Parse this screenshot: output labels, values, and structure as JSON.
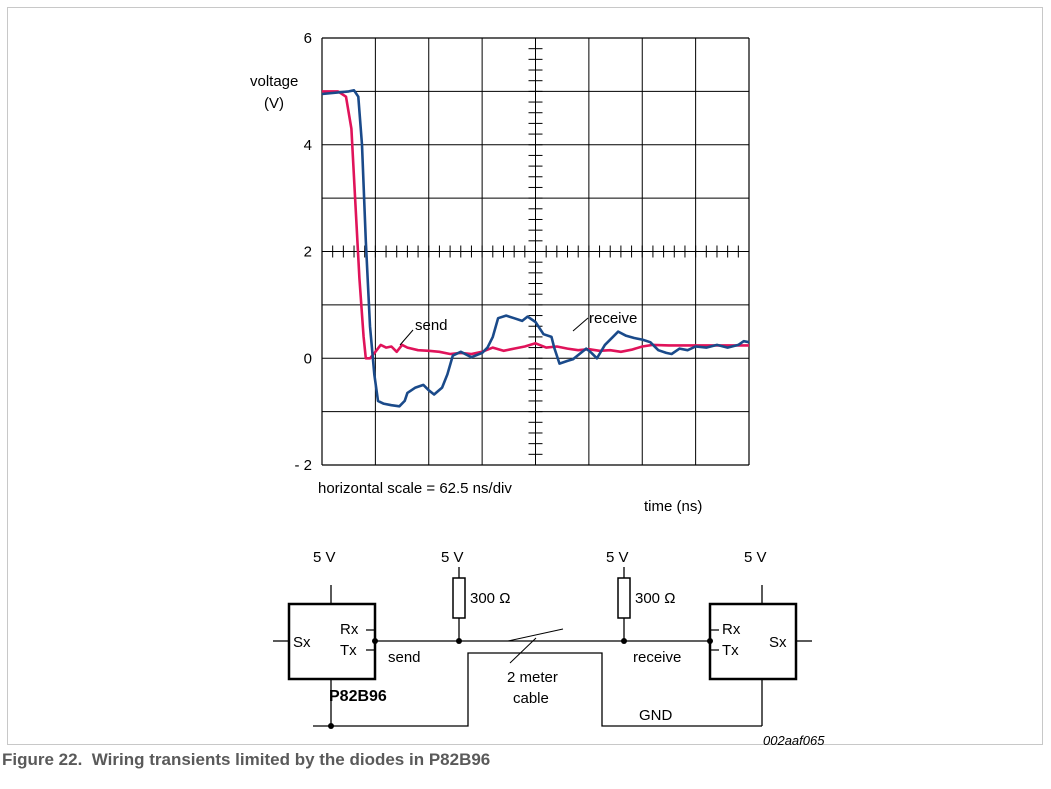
{
  "caption": {
    "number": "Figure 22.",
    "text": "Wiring transients limited by the diodes in P82B96"
  },
  "chart_data": {
    "type": "line",
    "ylabel_line1": "voltage",
    "ylabel_line2": "(V)",
    "xlabel": "time (ns)",
    "scale_note": "horizontal scale = 62.5 ns/div",
    "x_unit": "div",
    "xlim": [
      0,
      8
    ],
    "ylim": [
      -2,
      6
    ],
    "yticks": [
      {
        "v": 6,
        "label": "6"
      },
      {
        "v": 4,
        "label": "4"
      },
      {
        "v": 2,
        "label": "2"
      },
      {
        "v": 0,
        "label": "0"
      },
      {
        "v": -2,
        "label": "- 2"
      }
    ],
    "grid": true,
    "series": [
      {
        "name": "send",
        "color": "#e0135a",
        "points": [
          [
            0,
            5
          ],
          [
            0.3,
            5
          ],
          [
            0.45,
            4.9
          ],
          [
            0.55,
            4.3
          ],
          [
            0.62,
            3
          ],
          [
            0.7,
            1.5
          ],
          [
            0.78,
            0.4
          ],
          [
            0.82,
            0
          ],
          [
            0.9,
            0
          ],
          [
            1.0,
            0.12
          ],
          [
            1.1,
            0.25
          ],
          [
            1.2,
            0.2
          ],
          [
            1.3,
            0.22
          ],
          [
            1.4,
            0.12
          ],
          [
            1.5,
            0.25
          ],
          [
            1.6,
            0.2
          ],
          [
            1.8,
            0.15
          ],
          [
            2.0,
            0.14
          ],
          [
            2.2,
            0.12
          ],
          [
            2.4,
            0.08
          ],
          [
            2.6,
            0.1
          ],
          [
            2.8,
            0.08
          ],
          [
            3.0,
            0.12
          ],
          [
            3.2,
            0.2
          ],
          [
            3.4,
            0.14
          ],
          [
            3.6,
            0.18
          ],
          [
            3.8,
            0.22
          ],
          [
            4.0,
            0.28
          ],
          [
            4.2,
            0.2
          ],
          [
            4.4,
            0.22
          ],
          [
            4.6,
            0.18
          ],
          [
            4.8,
            0.15
          ],
          [
            5.0,
            0.17
          ],
          [
            5.2,
            0.14
          ],
          [
            5.4,
            0.15
          ],
          [
            5.6,
            0.12
          ],
          [
            5.8,
            0.16
          ],
          [
            6.0,
            0.22
          ],
          [
            6.2,
            0.25
          ],
          [
            6.5,
            0.24
          ],
          [
            7.0,
            0.24
          ],
          [
            7.5,
            0.24
          ],
          [
            8.0,
            0.24
          ]
        ]
      },
      {
        "name": "receive",
        "color": "#1a4a8a",
        "points": [
          [
            0,
            4.95
          ],
          [
            0.5,
            5
          ],
          [
            0.6,
            5.02
          ],
          [
            0.68,
            4.9
          ],
          [
            0.75,
            4
          ],
          [
            0.82,
            2.2
          ],
          [
            0.9,
            0.6
          ],
          [
            0.98,
            -0.3
          ],
          [
            1.05,
            -0.8
          ],
          [
            1.15,
            -0.85
          ],
          [
            1.3,
            -0.88
          ],
          [
            1.45,
            -0.9
          ],
          [
            1.55,
            -0.8
          ],
          [
            1.6,
            -0.65
          ],
          [
            1.75,
            -0.55
          ],
          [
            1.9,
            -0.5
          ],
          [
            2.0,
            -0.6
          ],
          [
            2.1,
            -0.68
          ],
          [
            2.25,
            -0.55
          ],
          [
            2.35,
            -0.3
          ],
          [
            2.45,
            0.05
          ],
          [
            2.6,
            0.12
          ],
          [
            2.8,
            0.02
          ],
          [
            3.0,
            0.1
          ],
          [
            3.1,
            0.2
          ],
          [
            3.2,
            0.4
          ],
          [
            3.3,
            0.75
          ],
          [
            3.45,
            0.8
          ],
          [
            3.6,
            0.75
          ],
          [
            3.75,
            0.7
          ],
          [
            3.85,
            0.78
          ],
          [
            4.0,
            0.68
          ],
          [
            4.15,
            0.45
          ],
          [
            4.3,
            0.4
          ],
          [
            4.35,
            0.2
          ],
          [
            4.45,
            -0.1
          ],
          [
            4.6,
            -0.05
          ],
          [
            4.7,
            -0.02
          ],
          [
            4.85,
            0.1
          ],
          [
            4.95,
            0.18
          ],
          [
            5.05,
            0.1
          ],
          [
            5.15,
            0.0
          ],
          [
            5.2,
            0.08
          ],
          [
            5.3,
            0.25
          ],
          [
            5.45,
            0.4
          ],
          [
            5.55,
            0.5
          ],
          [
            5.7,
            0.42
          ],
          [
            5.85,
            0.38
          ],
          [
            6.0,
            0.35
          ],
          [
            6.15,
            0.3
          ],
          [
            6.3,
            0.15
          ],
          [
            6.45,
            0.1
          ],
          [
            6.55,
            0.08
          ],
          [
            6.7,
            0.18
          ],
          [
            6.85,
            0.15
          ],
          [
            7.0,
            0.22
          ],
          [
            7.2,
            0.2
          ],
          [
            7.4,
            0.25
          ],
          [
            7.6,
            0.2
          ],
          [
            7.8,
            0.25
          ],
          [
            7.9,
            0.32
          ],
          [
            8.0,
            0.3
          ]
        ]
      }
    ]
  },
  "schematic": {
    "supply_left": "5 V",
    "supply_mid_left": "5 V",
    "supply_mid_right": "5 V",
    "supply_right": "5 V",
    "resistor_left": "300 Ω",
    "resistor_right": "300 Ω",
    "chip_left": {
      "sx": "Sx",
      "rx": "Rx",
      "tx": "Tx"
    },
    "chip_right": {
      "sx": "Sx",
      "rx": "Rx",
      "tx": "Tx"
    },
    "part_label": "P82B96",
    "send_label": "send",
    "receive_label": "receive",
    "cable_line1": "2 meter",
    "cable_line2": "cable",
    "gnd_label": "GND",
    "drawing_id": "002aaf065"
  }
}
